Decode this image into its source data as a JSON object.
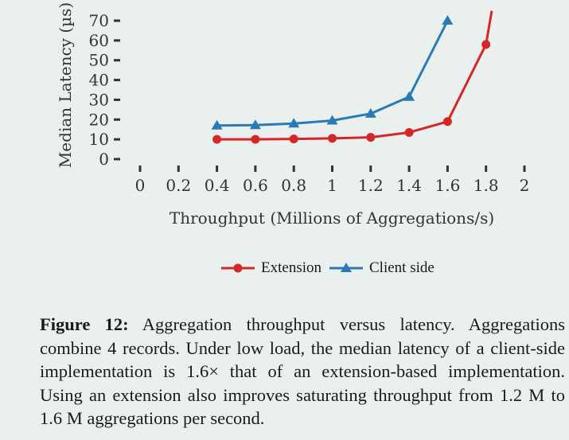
{
  "chart_data": {
    "type": "line",
    "xlabel": "Throughput (Millions of Aggregations/s)",
    "ylabel": "Median Latency (µs)",
    "x_ticks": [
      "0",
      "0.2",
      "0.4",
      "0.6",
      "0.8",
      "1",
      "1.2",
      "1.4",
      "1.6",
      "1.8",
      "2"
    ],
    "y_ticks": [
      "0",
      "10",
      "20",
      "30",
      "40",
      "50",
      "60",
      "70"
    ],
    "xlim": [
      0,
      2
    ],
    "ylim": [
      0,
      70
    ],
    "grid": false,
    "legend_position": "bottom",
    "series": [
      {
        "name": "Extension",
        "color": "#d62728",
        "marker": "circle",
        "x": [
          0.4,
          0.6,
          0.8,
          1.0,
          1.2,
          1.4,
          1.6,
          1.8,
          1.83
        ],
        "y": [
          10,
          10,
          10.2,
          10.5,
          11,
          13.5,
          19,
          58,
          75
        ]
      },
      {
        "name": "Client side",
        "color": "#2a7ab8",
        "marker": "triangle",
        "x": [
          0.4,
          0.6,
          0.8,
          1.0,
          1.2,
          1.4,
          1.6
        ],
        "y": [
          17,
          17.2,
          18,
          19.5,
          23,
          31.5,
          70
        ]
      }
    ]
  },
  "legend": {
    "extension": "Extension",
    "client_side": "Client side"
  },
  "caption": {
    "label": "Figure 12:",
    "text": "Aggregation throughput versus latency. Aggregations combine 4 records. Under low load, the median latency of a client-side implementation is 1.6× that of an extension-based implementation. Using an extension also improves saturating throughput from 1.2 M to 1.6 M aggregations per second."
  }
}
